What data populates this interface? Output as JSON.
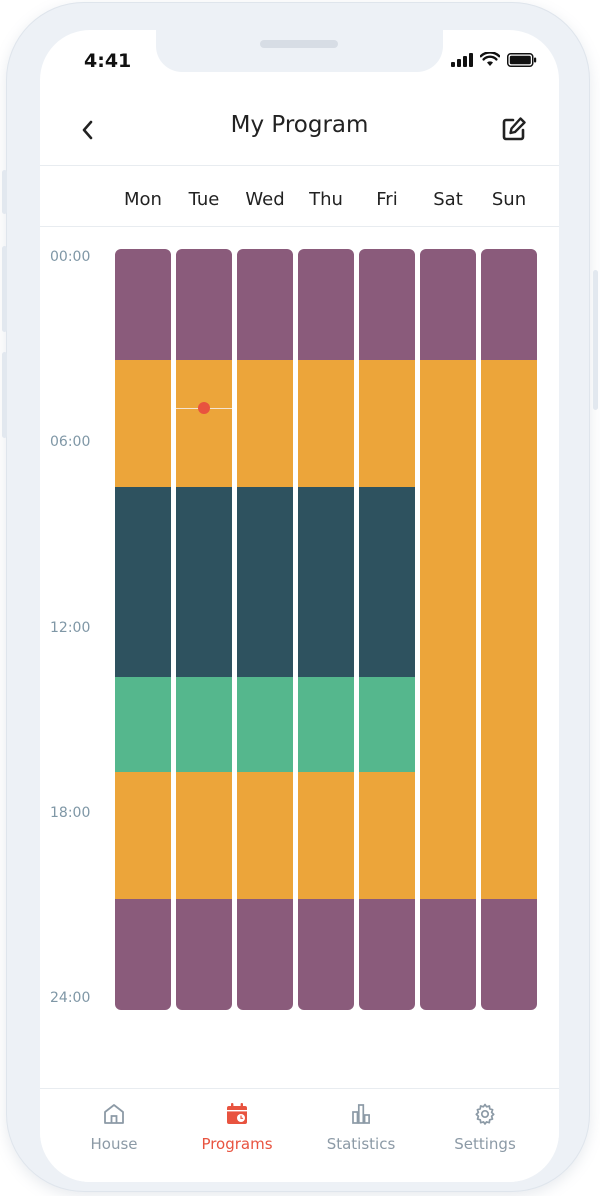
{
  "status": {
    "time": "4:41"
  },
  "header": {
    "title": "My Program"
  },
  "days": [
    "Mon",
    "Tue",
    "Wed",
    "Thu",
    "Fri",
    "Sat",
    "Sun"
  ],
  "time_labels": [
    "00:00",
    "06:00",
    "12:00",
    "18:00",
    "24:00"
  ],
  "colors": {
    "night": "#8a5b7b",
    "home": "#eca53a",
    "away": "#2e525f",
    "eco": "#55b78d",
    "accent": "#e8533f",
    "inactive": "#8c9aa6"
  },
  "schedule": {
    "weekday": [
      {
        "mode": "night",
        "start": 0,
        "end": 3.5
      },
      {
        "mode": "home",
        "start": 3.5,
        "end": 7.5
      },
      {
        "mode": "away",
        "start": 7.5,
        "end": 13.5
      },
      {
        "mode": "eco",
        "start": 13.5,
        "end": 16.5
      },
      {
        "mode": "home",
        "start": 16.5,
        "end": 20.5
      },
      {
        "mode": "night",
        "start": 20.5,
        "end": 24
      }
    ],
    "weekend": [
      {
        "mode": "night",
        "start": 0,
        "end": 3.5
      },
      {
        "mode": "home",
        "start": 3.5,
        "end": 20.5
      },
      {
        "mode": "night",
        "start": 20.5,
        "end": 24
      }
    ]
  },
  "current_marker": {
    "day": "Tue",
    "hour": 5
  },
  "tabs": [
    {
      "label": "House",
      "icon": "house-icon",
      "active": false
    },
    {
      "label": "Programs",
      "icon": "calendar-clock-icon",
      "active": true
    },
    {
      "label": "Statistics",
      "icon": "bar-chart-icon",
      "active": false
    },
    {
      "label": "Settings",
      "icon": "gear-icon",
      "active": false
    }
  ]
}
